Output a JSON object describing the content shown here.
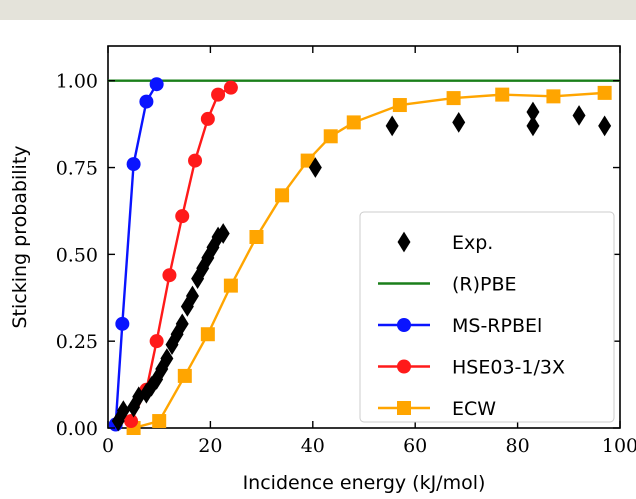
{
  "chart_data": {
    "type": "line",
    "xlabel": "Incidence energy (kJ/mol)",
    "ylabel": "Sticking probability",
    "xlim": [
      0,
      100
    ],
    "ylim": [
      0,
      1.1
    ],
    "x_ticks": [
      0,
      20,
      40,
      60,
      80,
      100
    ],
    "x_tick_labels": [
      "0",
      "20",
      "40",
      "60",
      "80",
      "100"
    ],
    "y_ticks": [
      0,
      0.25,
      0.5,
      0.75,
      1.0
    ],
    "y_tick_labels": [
      "0.00",
      "0.25",
      "0.50",
      "0.75",
      "1.00"
    ],
    "grid": false,
    "legend_position": "lower-right",
    "series": [
      {
        "name": "Exp.",
        "kind": "scatter",
        "marker": "diamond",
        "color": "#000000",
        "x": [
          2,
          3,
          5,
          6,
          7.5,
          8.5,
          9.5,
          10.5,
          11.5,
          12.5,
          13.5,
          14.5,
          15.5,
          16.5,
          17.5,
          18.5,
          19.5,
          20.5,
          21.5,
          22.5,
          40.5,
          55.5,
          68.5,
          83,
          83,
          92,
          97
        ],
        "y": [
          0.02,
          0.05,
          0.06,
          0.09,
          0.1,
          0.12,
          0.14,
          0.17,
          0.2,
          0.24,
          0.27,
          0.3,
          0.35,
          0.38,
          0.43,
          0.46,
          0.49,
          0.52,
          0.55,
          0.56,
          0.75,
          0.87,
          0.88,
          0.87,
          0.91,
          0.9,
          0.87
        ]
      },
      {
        "name": "(R)PBE",
        "kind": "line",
        "color": "#1a7f1a",
        "x": [
          0,
          100
        ],
        "y": [
          1.0,
          1.0
        ]
      },
      {
        "name": "MS-RPBEl",
        "kind": "line",
        "marker": "circle",
        "color": "#0a14ff",
        "x": [
          1.5,
          2.8,
          5.0,
          7.5,
          9.5
        ],
        "y": [
          0.01,
          0.3,
          0.76,
          0.94,
          0.99
        ]
      },
      {
        "name": "HSE03-1/3X",
        "kind": "line",
        "marker": "circle",
        "color": "#ff1a1a",
        "x": [
          4.5,
          7.5,
          9.5,
          12,
          14.5,
          17,
          19.5,
          21.5,
          24
        ],
        "y": [
          0.02,
          0.11,
          0.25,
          0.44,
          0.61,
          0.77,
          0.89,
          0.96,
          0.98
        ]
      },
      {
        "name": "ECW",
        "kind": "line",
        "marker": "square",
        "color": "#ffa500",
        "x": [
          5,
          10,
          15,
          19.5,
          24,
          29,
          34,
          39,
          43.5,
          48,
          57,
          67.5,
          77,
          87,
          97
        ],
        "y": [
          0.0,
          0.02,
          0.15,
          0.27,
          0.41,
          0.55,
          0.67,
          0.77,
          0.84,
          0.88,
          0.93,
          0.95,
          0.96,
          0.955,
          0.965
        ]
      }
    ]
  }
}
